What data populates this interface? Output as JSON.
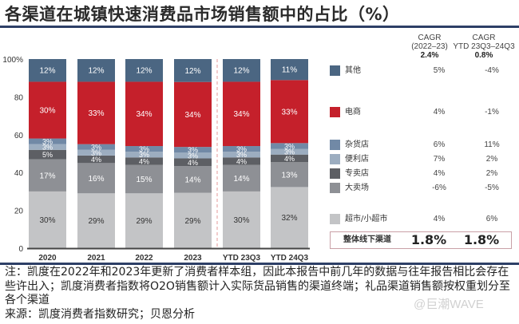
{
  "title": "各渠道在城镇快速消费品市场销售额中的占比（%）",
  "chart_data": {
    "type": "stacked-bar",
    "categories": [
      "2020",
      "2021",
      "2022",
      "2023",
      "YTD 23Q3",
      "YTD 24Q3"
    ],
    "yticks": [
      "0",
      "20",
      "40",
      "60",
      "80",
      "100%"
    ],
    "ylim": [
      0,
      100
    ],
    "grid": false,
    "divider_after": "2023",
    "series": [
      {
        "name": "超市/小超市",
        "color": "#c3c4c6",
        "text_color": "#333333",
        "values": [
          30,
          29,
          29,
          29,
          30,
          32
        ]
      },
      {
        "name": "大卖场",
        "color": "#8e9095",
        "text_color": "#ffffff",
        "values": [
          17,
          16,
          15,
          14,
          14,
          13
        ]
      },
      {
        "name": "专卖店",
        "color": "#5d5f64",
        "text_color": "#ffffff",
        "values": [
          5,
          4,
          4,
          4,
          4,
          4
        ]
      },
      {
        "name": "便利店",
        "color": "#9cadc0",
        "text_color": "#ffffff",
        "values": [
          3,
          3,
          3,
          3,
          3,
          3
        ]
      },
      {
        "name": "杂货店",
        "color": "#7189a6",
        "text_color": "#ffffff",
        "values": [
          3,
          3,
          3,
          3,
          3,
          3
        ]
      },
      {
        "name": "电商",
        "color": "#c5202b",
        "text_color": "#ffffff",
        "values": [
          30,
          33,
          34,
          34,
          34,
          33
        ]
      },
      {
        "name": "其他",
        "color": "#4b6682",
        "text_color": "#ffffff",
        "values": [
          12,
          12,
          12,
          12,
          12,
          11
        ]
      }
    ]
  },
  "legend": {
    "col1_header": [
      "CAGR",
      "(2022–23)"
    ],
    "col2_header": [
      "CAGR",
      "YTD 23Q3–24Q3"
    ],
    "col1_total": "2.4%",
    "col2_total": "0.8%",
    "rows": [
      {
        "name": "其他",
        "color": "#4b6682",
        "cagr": "5%",
        "ytd": "-4%"
      },
      {
        "name": "电商",
        "color": "#c5202b",
        "cagr": "4%",
        "ytd": "-1%"
      },
      {
        "name": "杂货店",
        "color": "#7189a6",
        "cagr": "6%",
        "ytd": "11%"
      },
      {
        "name": "便利店",
        "color": "#9cadc0",
        "cagr": "7%",
        "ytd": "2%"
      },
      {
        "name": "专卖店",
        "color": "#5d5f64",
        "cagr": "4%",
        "ytd": "2%"
      },
      {
        "name": "大卖场",
        "color": "#8e9095",
        "cagr": "-6%",
        "ytd": "-5%"
      },
      {
        "name": "超市/小超市",
        "color": "#c3c4c6",
        "cagr": "4%",
        "ytd": "6%"
      }
    ],
    "total": {
      "name": "整体线下渠道",
      "cagr": "1.8%",
      "ytd": "1.8%"
    }
  },
  "notes": [
    "注：凯度在2022年和2023年更新了消费者样本组，因此本报告中前几年的数据与往年报告相比会存在",
    "些许出入；凯度消费者指数将O2O销售额计入实际货品销售的渠道终端；礼品渠道销售额按权重划分至",
    "各个渠道",
    "来源：凯度消费者指数研究；贝恩分析"
  ],
  "watermark": "@巨潮WAVE"
}
